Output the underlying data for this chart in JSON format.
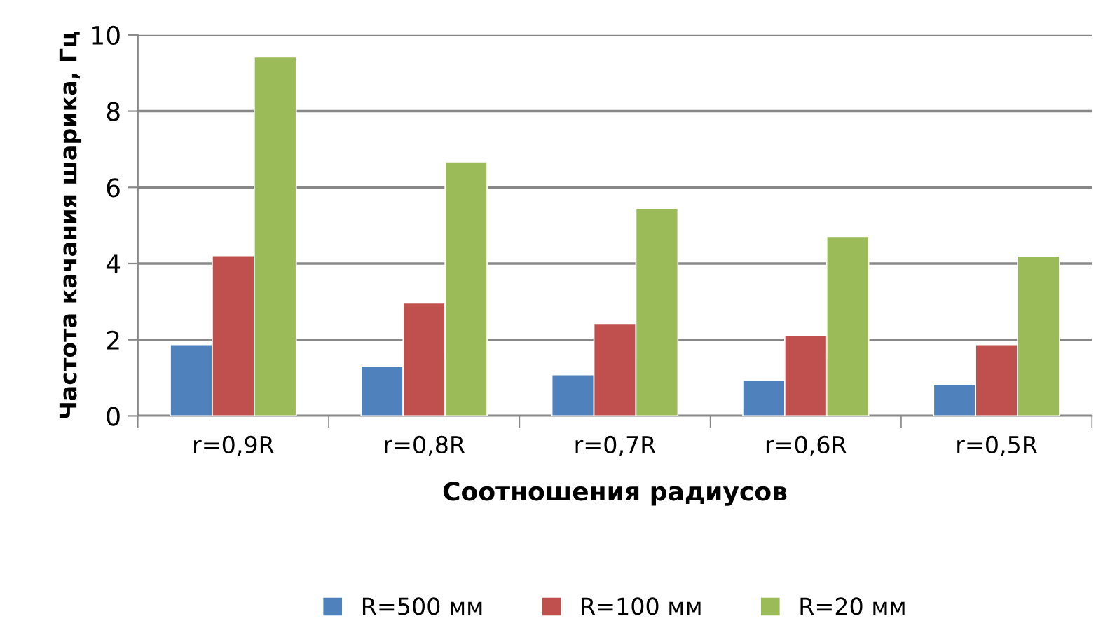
{
  "chart_data": {
    "type": "bar",
    "xlabel": "Соотношения радиусов",
    "ylabel": "Частота качания шарика, Гц",
    "categories": [
      "r=0,9R",
      "r=0,8R",
      "r=0,7R",
      "r=0,6R",
      "r=0,5R"
    ],
    "series": [
      {
        "name": "R=500 мм",
        "color": "#4f81bd",
        "values": [
          1.87,
          1.31,
          1.08,
          0.93,
          0.83
        ]
      },
      {
        "name": "R=100 мм",
        "color": "#c0504d",
        "values": [
          4.21,
          2.96,
          2.43,
          2.1,
          1.87
        ]
      },
      {
        "name": "R=20 мм",
        "color": "#9bbb59",
        "values": [
          9.42,
          6.67,
          5.45,
          4.71,
          4.2
        ]
      }
    ],
    "ylim": [
      0,
      10
    ],
    "yticks": [
      0,
      2,
      4,
      6,
      8,
      10
    ],
    "grid": "y",
    "legend": "bottom"
  }
}
